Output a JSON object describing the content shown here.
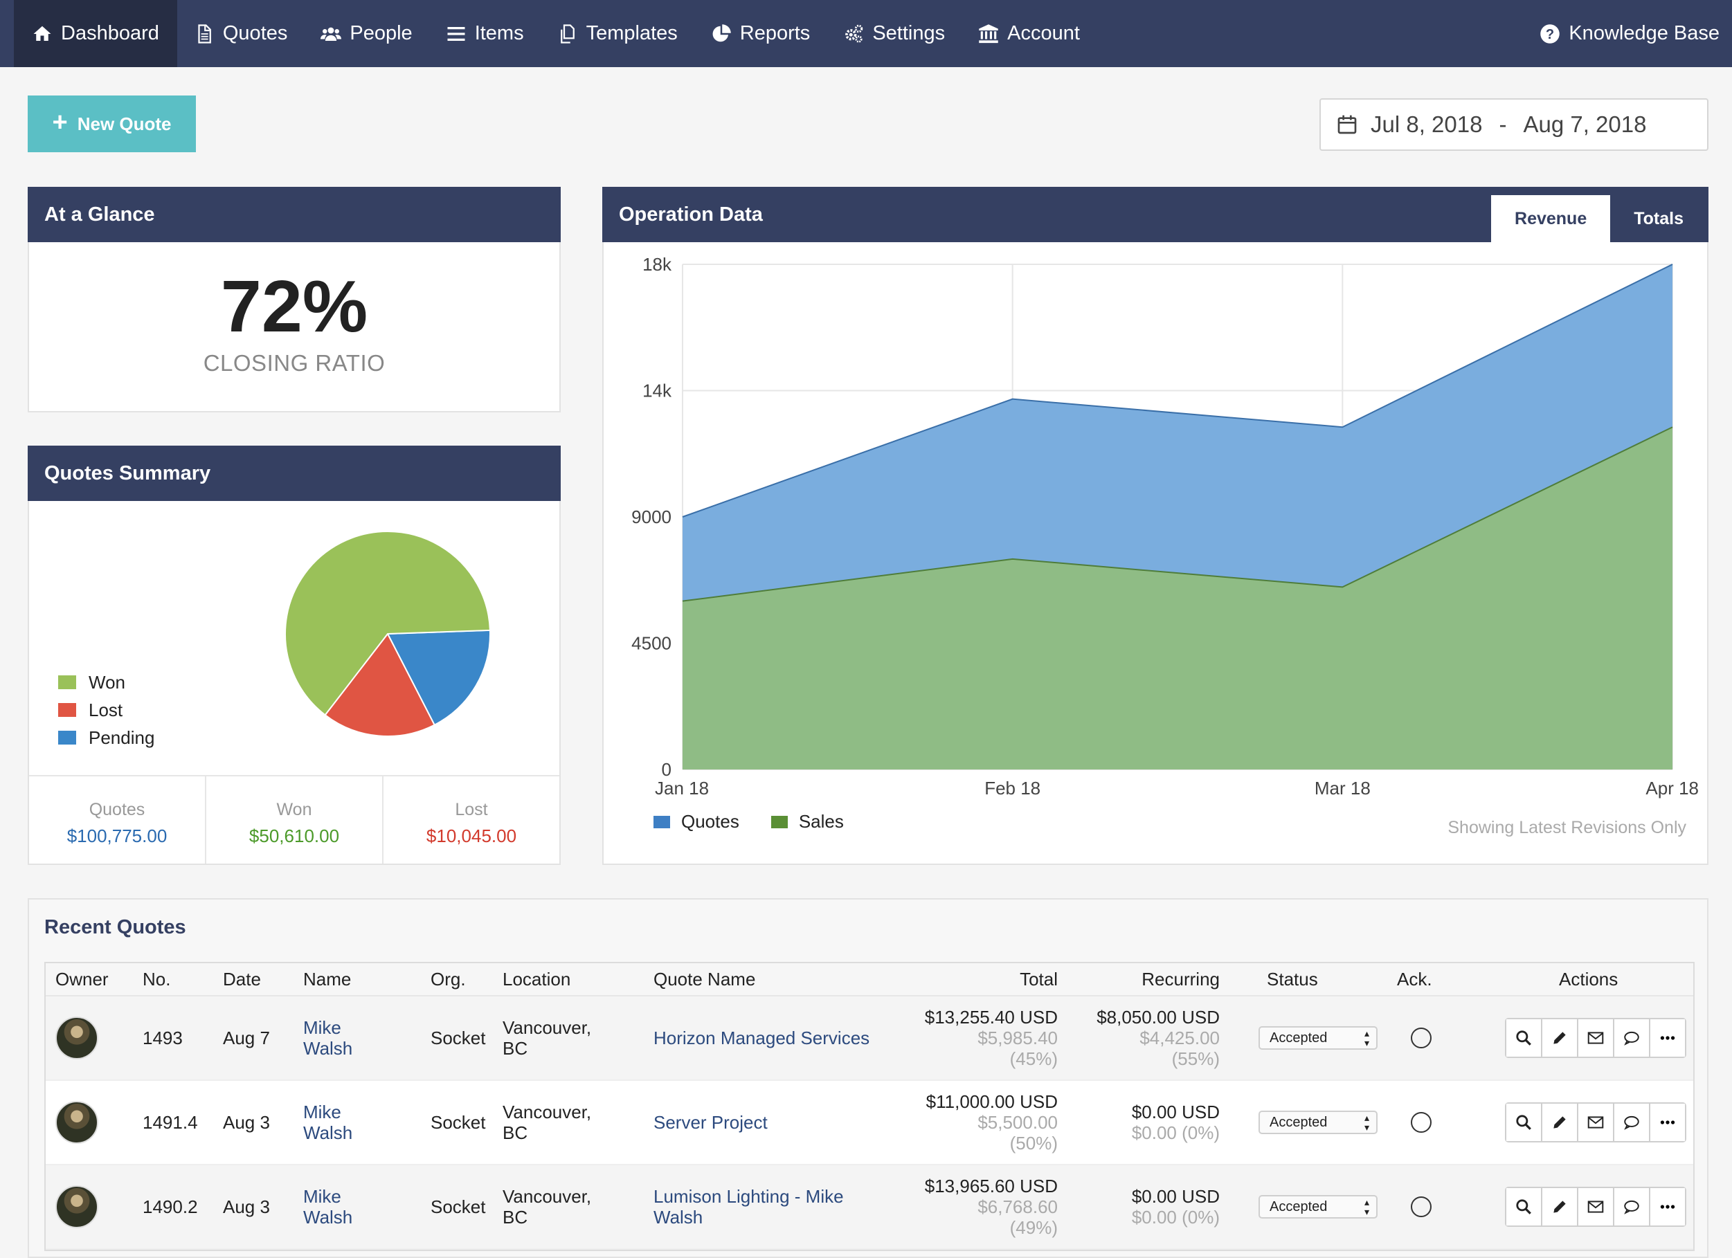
{
  "nav": {
    "items": [
      {
        "label": "Dashboard",
        "icon": "home-icon"
      },
      {
        "label": "Quotes",
        "icon": "document-icon"
      },
      {
        "label": "People",
        "icon": "people-icon"
      },
      {
        "label": "Items",
        "icon": "list-icon"
      },
      {
        "label": "Templates",
        "icon": "copy-icon"
      },
      {
        "label": "Reports",
        "icon": "pie-chart-icon"
      },
      {
        "label": "Settings",
        "icon": "gears-icon"
      },
      {
        "label": "Account",
        "icon": "bank-icon"
      }
    ],
    "knowledge_base": "Knowledge Base",
    "active": "Dashboard"
  },
  "toolbar": {
    "new_quote": "New Quote",
    "date_start": "Jul 8, 2018",
    "date_sep": "-",
    "date_end": "Aug 7, 2018"
  },
  "glance": {
    "title": "At a Glance",
    "ratio": "72%",
    "ratio_label": "CLOSING RATIO"
  },
  "summary": {
    "title": "Quotes Summary",
    "legend": [
      {
        "label": "Won",
        "color": "#9ac159"
      },
      {
        "label": "Lost",
        "color": "#e05543"
      },
      {
        "label": "Pending",
        "color": "#3a87c9"
      }
    ],
    "stats": [
      {
        "label": "Quotes",
        "value": "$100,775.00",
        "color": "#2a6ab0"
      },
      {
        "label": "Won",
        "value": "$50,610.00",
        "color": "#4c9a2a"
      },
      {
        "label": "Lost",
        "value": "$10,045.00",
        "color": "#d23a2c"
      }
    ]
  },
  "operation": {
    "title": "Operation Data",
    "tabs": [
      "Revenue",
      "Totals"
    ],
    "active_tab": "Revenue",
    "note": "Showing Latest Revisions Only"
  },
  "chart_data": [
    {
      "type": "pie",
      "title": "",
      "labels": [
        "Won",
        "Lost",
        "Pending"
      ],
      "values": [
        64,
        18,
        18
      ],
      "colors": [
        "#9ac159",
        "#e05543",
        "#3a87c9"
      ]
    },
    {
      "type": "area",
      "title": "",
      "x": [
        "Jan 18",
        "Feb 18",
        "Mar 18",
        "Apr 18"
      ],
      "series": [
        {
          "name": "Quotes",
          "values": [
            9000,
            13200,
            12200,
            18000
          ],
          "color": "#7aadde"
        },
        {
          "name": "Sales",
          "values": [
            6000,
            7500,
            6500,
            12200
          ],
          "color": "#8fbc85"
        }
      ],
      "legend_colors": {
        "Quotes": "#3e7fc4",
        "Sales": "#5a8f35"
      },
      "ylim": [
        0,
        18000
      ],
      "yticks": [
        "0",
        "4500",
        "9000",
        "14k",
        "18k"
      ],
      "ytick_values": [
        0,
        4500,
        9000,
        13500,
        18000
      ],
      "grid": true,
      "legend": "bottom-left"
    }
  ],
  "recent": {
    "title": "Recent Quotes",
    "columns": [
      "Owner",
      "No.",
      "Date",
      "Name",
      "Org.",
      "Location",
      "Quote Name",
      "Total",
      "Recurring",
      "Status",
      "Ack.",
      "Actions"
    ],
    "rows": [
      {
        "no": "1493",
        "date": "Aug 7",
        "first": "Mike",
        "last": "Walsh",
        "org": "Socket",
        "city": "Vancouver,",
        "prov": "BC",
        "qname1": "Horizon Managed Services",
        "qname2": "",
        "total": "$13,255.40 USD",
        "total_sub": "$5,985.40",
        "total_pct": "(45%)",
        "rec": "$8,050.00 USD",
        "rec_sub": "$4,425.00",
        "rec_pct": "(55%)",
        "status": "Accepted"
      },
      {
        "no": "1491.4",
        "date": "Aug 3",
        "first": "Mike",
        "last": "Walsh",
        "org": "Socket",
        "city": "Vancouver,",
        "prov": "BC",
        "qname1": "Server Project",
        "qname2": "",
        "total": "$11,000.00 USD",
        "total_sub": "$5,500.00",
        "total_pct": "(50%)",
        "rec": "$0.00 USD",
        "rec_sub": "$0.00 (0%)",
        "rec_pct": "",
        "status": "Accepted"
      },
      {
        "no": "1490.2",
        "date": "Aug 3",
        "first": "Mike",
        "last": "Walsh",
        "org": "Socket",
        "city": "Vancouver,",
        "prov": "BC",
        "qname1": "Lumison Lighting - Mike",
        "qname2": "Walsh",
        "total": "$13,965.60 USD",
        "total_sub": "$6,768.60",
        "total_pct": "(49%)",
        "rec": "$0.00 USD",
        "rec_sub": "$0.00 (0%)",
        "rec_pct": "",
        "status": "Accepted"
      }
    ]
  },
  "colors": {
    "nav_bg": "#354062",
    "nav_active": "#262d44",
    "accent_teal": "#5bbfc5",
    "link": "#2c4a7e"
  }
}
